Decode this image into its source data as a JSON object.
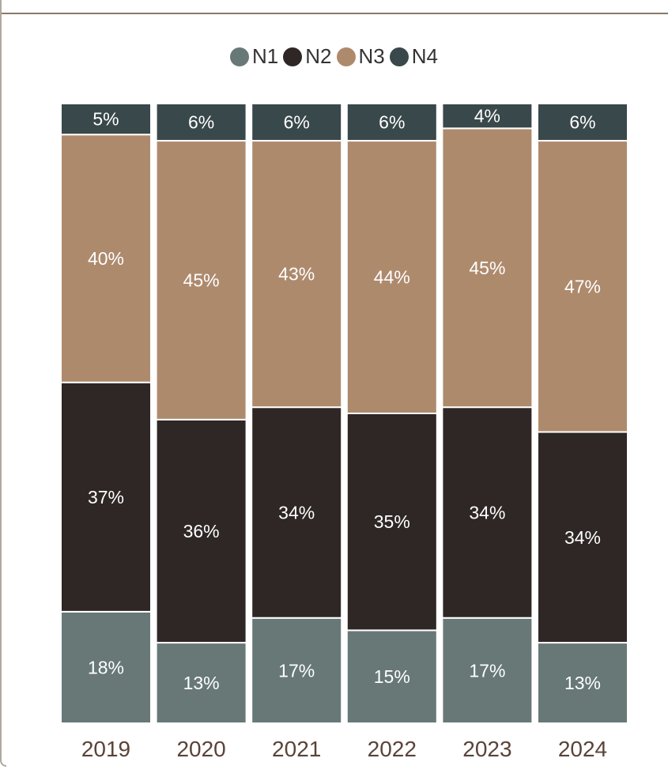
{
  "chart_data": {
    "type": "bar",
    "stacked": true,
    "normalized": true,
    "categories": [
      "2019",
      "2020",
      "2021",
      "2022",
      "2023",
      "2024"
    ],
    "series": [
      {
        "name": "N1",
        "color": "#677877",
        "values": [
          18,
          13,
          17,
          15,
          17,
          13
        ],
        "labels": [
          "18%",
          "13%",
          "17%",
          "15%",
          "17%",
          "13%"
        ]
      },
      {
        "name": "N2",
        "color": "#2f2626",
        "values": [
          37,
          36,
          34,
          35,
          34,
          34
        ],
        "labels": [
          "37%",
          "36%",
          "34%",
          "35%",
          "34%",
          "34%"
        ]
      },
      {
        "name": "N3",
        "color": "#ae8a6d",
        "values": [
          40,
          45,
          43,
          44,
          45,
          47
        ],
        "labels": [
          "40%",
          "45%",
          "43%",
          "44%",
          "45%",
          "47%"
        ]
      },
      {
        "name": "N4",
        "color": "#39484a",
        "values": [
          5,
          6,
          6,
          6,
          4,
          6
        ],
        "labels": [
          "5%",
          "6%",
          "6%",
          "6%",
          "4%",
          "6%"
        ]
      }
    ],
    "legend_position": "top-center",
    "title": "",
    "xlabel": "",
    "ylabel": "",
    "ylim": [
      0,
      100
    ],
    "grid": false,
    "tick_label_color": "#5a4338"
  }
}
